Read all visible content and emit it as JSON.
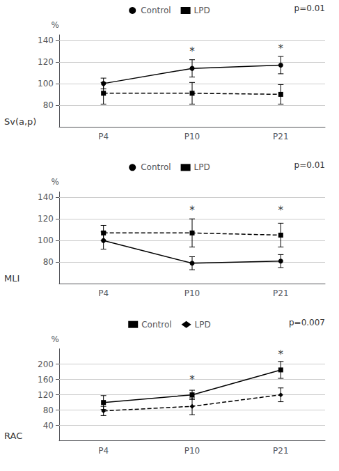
{
  "chart_data": [
    {
      "type": "line",
      "title": "Sv(a,p)",
      "ylabel": "%",
      "categories": [
        "P4",
        "P10",
        "P21"
      ],
      "series": [
        {
          "name": "Control",
          "color": "black",
          "marker": "circle",
          "line_style": "solid",
          "values": [
            100,
            114,
            117
          ],
          "errors": [
            5,
            8,
            8
          ]
        },
        {
          "name": "LPD",
          "color": "black",
          "marker": "square",
          "line_style": "dashed",
          "values": [
            91,
            91,
            90
          ],
          "errors": [
            10,
            10,
            9
          ]
        }
      ],
      "annotations": [
        {
          "text": "*",
          "x": "P10",
          "y": 125
        },
        {
          "text": "*",
          "x": "P21",
          "y": 127
        },
        {
          "text": "p=0.01"
        }
      ],
      "ylim": [
        60,
        145
      ],
      "yticks": [
        80,
        100,
        120,
        140
      ],
      "grid": true,
      "legend": "top"
    },
    {
      "type": "line",
      "title": "MLI",
      "ylabel": "%",
      "categories": [
        "P4",
        "P10",
        "P21"
      ],
      "series": [
        {
          "name": "Control",
          "color": "black",
          "marker": "circle",
          "line_style": "solid",
          "values": [
            100,
            79,
            81
          ],
          "errors": [
            8,
            6,
            6
          ]
        },
        {
          "name": "LPD",
          "color": "black",
          "marker": "square",
          "line_style": "dashed",
          "values": [
            107,
            107,
            105
          ],
          "errors": [
            7,
            13,
            11
          ]
        }
      ],
      "annotations": [
        {
          "text": "*",
          "x": "P10",
          "y": 123
        },
        {
          "text": "*",
          "x": "P21",
          "y": 123
        },
        {
          "text": "p=0.01"
        }
      ],
      "ylim": [
        60,
        145
      ],
      "yticks": [
        80,
        100,
        120,
        140
      ],
      "grid": true,
      "legend": "top"
    },
    {
      "type": "line",
      "title": "RAC",
      "ylabel": "%",
      "categories": [
        "P4",
        "P10",
        "P21"
      ],
      "series": [
        {
          "name": "Control",
          "color": "black",
          "marker": "square",
          "line_style": "solid",
          "values": [
            100,
            120,
            185
          ],
          "errors": [
            18,
            12,
            22
          ]
        },
        {
          "name": "LPD",
          "color": "black",
          "marker": "diamond",
          "line_style": "dashed",
          "values": [
            78,
            90,
            120
          ],
          "errors": [
            12,
            22,
            18
          ]
        }
      ],
      "annotations": [
        {
          "text": "*",
          "x": "P10",
          "y": 145
        },
        {
          "text": "*",
          "x": "P21",
          "y": 212
        },
        {
          "text": "p=0.007"
        }
      ],
      "ylim": [
        0,
        240
      ],
      "yticks": [
        40,
        80,
        120,
        160,
        200
      ],
      "grid": true,
      "legend": "top"
    }
  ]
}
